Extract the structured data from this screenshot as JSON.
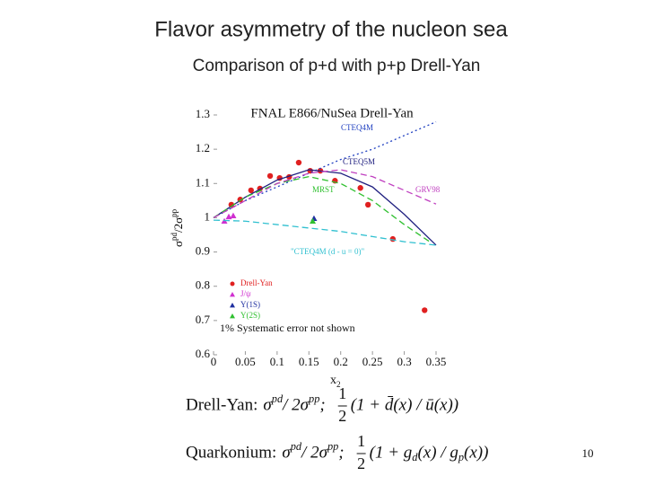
{
  "header": {
    "title": "Flavor asymmetry of the nucleon sea",
    "subtitle": "Comparison of p+d with p+p Drell-Yan"
  },
  "chart_data": {
    "type": "scatter",
    "title": "FNAL E866/NuSea Drell-Yan",
    "x_label": [
      "x",
      "2"
    ],
    "y_label": [
      "σ",
      "pd",
      "/2σ",
      "pp"
    ],
    "xlim": [
      0,
      0.35
    ],
    "xticks": [
      0,
      0.05,
      0.1,
      0.15,
      0.2,
      0.25,
      0.3,
      0.35
    ],
    "ylim": [
      0.6,
      1.3
    ],
    "yticks": [
      0.6,
      0.7,
      0.8,
      0.9,
      1,
      1.1,
      1.2,
      1.3
    ],
    "legend": "lower left",
    "annotation": "1% Systematic error not shown",
    "series": [
      {
        "name": "Drell-Yan",
        "type": "scatter",
        "marker": "circle",
        "color": "#e02020",
        "x": [
          0.028,
          0.042,
          0.059,
          0.073,
          0.089,
          0.104,
          0.119,
          0.134,
          0.152,
          0.168,
          0.191,
          0.231,
          0.243,
          0.282,
          0.332
        ],
        "values": [
          1.038,
          1.053,
          1.08,
          1.085,
          1.122,
          1.116,
          1.119,
          1.161,
          1.137,
          1.137,
          1.108,
          1.087,
          1.038,
          0.938,
          0.73
        ]
      },
      {
        "name": "J/ψ",
        "type": "scatter",
        "marker": "triangle",
        "color": "#d030d0",
        "x": [
          0.017,
          0.024,
          0.031
        ],
        "values": [
          0.99,
          1.003,
          1.006
        ]
      },
      {
        "name": "Υ(1S)",
        "type": "scatter",
        "marker": "triangle",
        "color": "#2030a0",
        "x": [
          0.158
        ],
        "values": [
          0.998
        ]
      },
      {
        "name": "Υ(2S)",
        "type": "scatter",
        "marker": "triangle",
        "color": "#30c030",
        "x": [
          0.156
        ],
        "values": [
          0.99
        ]
      },
      {
        "name": "CTEQ4M",
        "type": "line",
        "dash": "2,3",
        "color": "#2040c0",
        "x": [
          0,
          0.05,
          0.1,
          0.15,
          0.2,
          0.25,
          0.3,
          0.35
        ],
        "values": [
          1.0,
          1.05,
          1.09,
          1.13,
          1.17,
          1.2,
          1.24,
          1.28
        ]
      },
      {
        "name": "CTEQ5M",
        "type": "line",
        "dash": "none",
        "color": "#202080",
        "x": [
          0,
          0.05,
          0.1,
          0.15,
          0.2,
          0.25,
          0.3,
          0.35
        ],
        "values": [
          1.0,
          1.06,
          1.11,
          1.14,
          1.13,
          1.09,
          1.01,
          0.92
        ]
      },
      {
        "name": "MRST",
        "type": "line",
        "dash": "7,4",
        "color": "#30c030",
        "x": [
          0,
          0.05,
          0.1,
          0.15,
          0.2,
          0.25,
          0.3,
          0.34
        ],
        "values": [
          1.0,
          1.06,
          1.1,
          1.12,
          1.1,
          1.05,
          0.98,
          0.93
        ]
      },
      {
        "name": "GRV98",
        "type": "line",
        "dash": "7,4",
        "color": "#c040c0",
        "x": [
          0,
          0.05,
          0.1,
          0.15,
          0.2,
          0.25,
          0.3,
          0.35
        ],
        "values": [
          1.0,
          1.05,
          1.1,
          1.13,
          1.14,
          1.12,
          1.08,
          1.04
        ]
      },
      {
        "name": "\"CTEQ4M (d - u = 0)\"",
        "type": "line",
        "dash": "7,4",
        "color": "#30c0d0",
        "x": [
          0,
          0.05,
          0.1,
          0.15,
          0.2,
          0.25,
          0.3,
          0.35
        ],
        "values": [
          0.993,
          0.99,
          0.98,
          0.97,
          0.96,
          0.945,
          0.93,
          0.92
        ]
      }
    ]
  },
  "formulas": [
    {
      "label": "Drell-Yan:",
      "ratio": [
        "σ",
        "pd",
        " / 2σ",
        "pp",
        " ;"
      ],
      "numerator": "1",
      "denominator": "2",
      "expr": [
        "(1 + d̄(x) / ū(x))"
      ]
    },
    {
      "label": "Quarkonium:",
      "ratio": [
        "σ",
        "pd",
        " / 2σ",
        "pp",
        " ;"
      ],
      "numerator": "1",
      "denominator": "2",
      "expr": [
        "(1 + g",
        "d",
        "(x) / g",
        "p",
        "(x))"
      ]
    }
  ],
  "footer": {
    "page": "10"
  }
}
